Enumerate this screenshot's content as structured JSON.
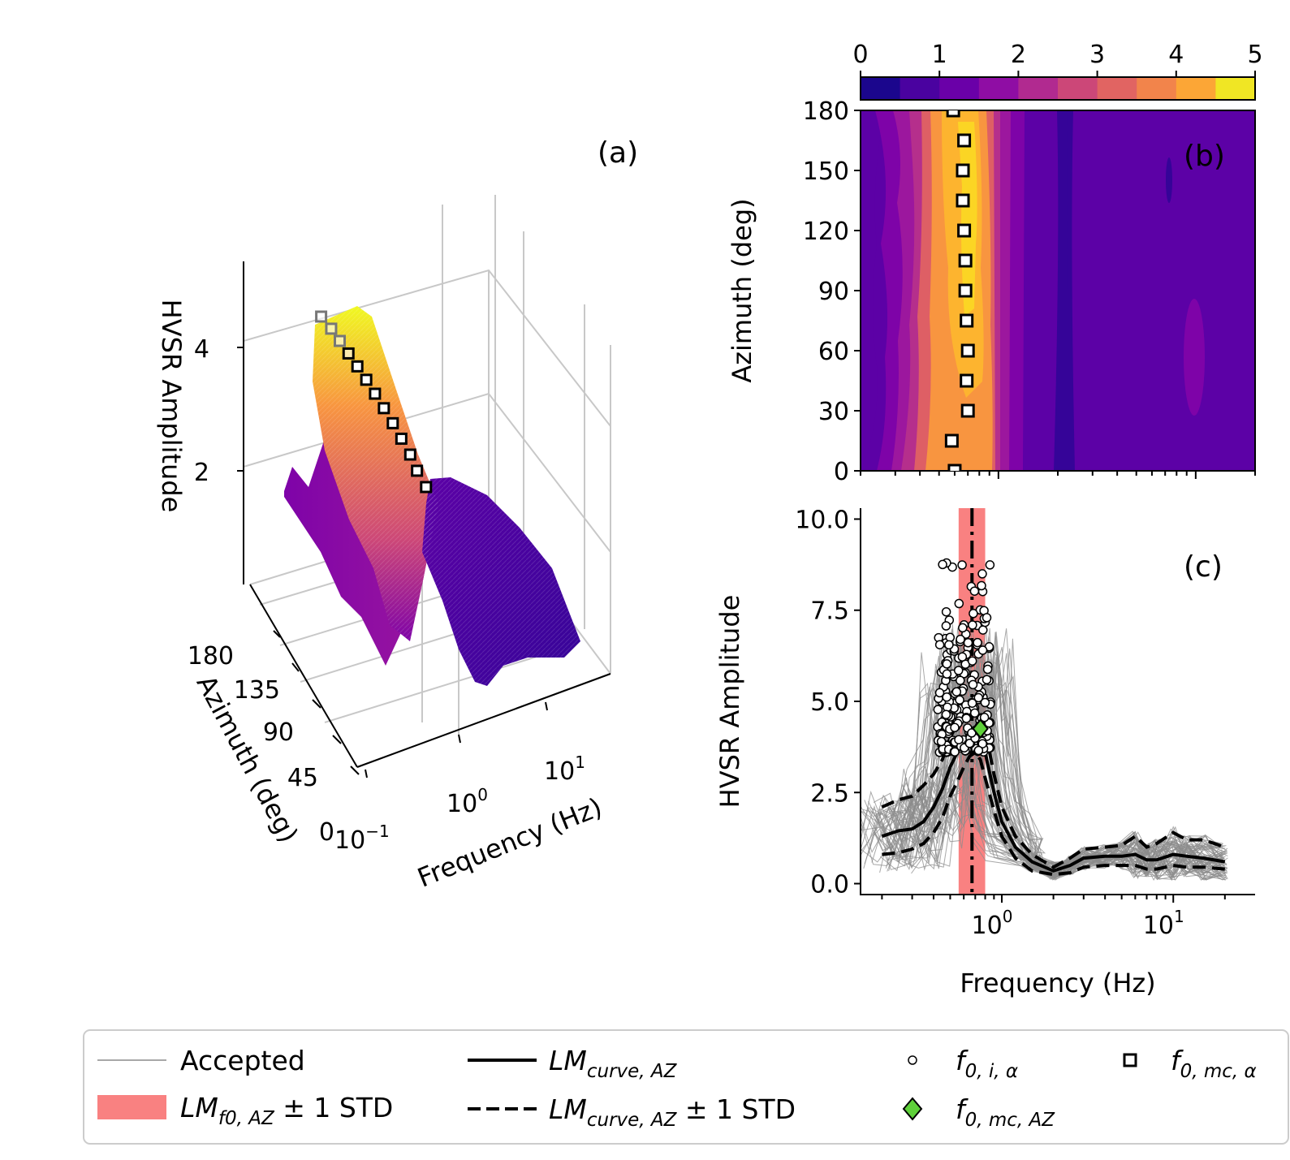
{
  "chart_data": [
    {
      "panel": "(a)",
      "type": "surface3d",
      "xlabel": "Frequency (Hz)",
      "ylabel": "Azimuth (deg)",
      "zlabel": "HVSR Amplitude",
      "x_ticks": [
        "10",
        "10",
        "10"
      ],
      "x_tick_exps": [
        "−1",
        "0",
        "1"
      ],
      "y_ticks": [
        "0",
        "45",
        "90",
        "135",
        "180"
      ],
      "z_ticks": [
        "2",
        "4"
      ],
      "colormap": "plasma",
      "peak_freq_hz": 0.65,
      "peak_amplitude": 4.6,
      "f0_markers_azimuth": [
        0,
        15,
        30,
        45,
        60,
        75,
        90,
        105,
        120,
        135,
        150,
        165,
        180
      ],
      "f0_markers_freq_hz": [
        0.6,
        0.58,
        0.7,
        0.69,
        0.7,
        0.69,
        0.68,
        0.68,
        0.67,
        0.66,
        0.66,
        0.67,
        0.59
      ]
    },
    {
      "panel": "(b)",
      "type": "heatmap",
      "xlabel": "",
      "ylabel": "Azimuth (deg)",
      "y_ticks": [
        "0",
        "30",
        "60",
        "90",
        "120",
        "150",
        "180"
      ],
      "ylim": [
        0,
        180
      ],
      "xlim_hz": [
        0.2,
        20
      ],
      "colorbar_ticks": [
        "0",
        "1",
        "2",
        "3",
        "4",
        "5"
      ],
      "colorbar_range": [
        0,
        5
      ],
      "colormap": "plasma",
      "f0_mc_alpha": [
        {
          "azimuth": 0,
          "freq_hz": 0.6
        },
        {
          "azimuth": 15,
          "freq_hz": 0.58
        },
        {
          "azimuth": 30,
          "freq_hz": 0.7
        },
        {
          "azimuth": 45,
          "freq_hz": 0.69
        },
        {
          "azimuth": 60,
          "freq_hz": 0.7
        },
        {
          "azimuth": 75,
          "freq_hz": 0.69
        },
        {
          "azimuth": 90,
          "freq_hz": 0.68
        },
        {
          "azimuth": 105,
          "freq_hz": 0.68
        },
        {
          "azimuth": 120,
          "freq_hz": 0.67
        },
        {
          "azimuth": 135,
          "freq_hz": 0.66
        },
        {
          "azimuth": 150,
          "freq_hz": 0.66
        },
        {
          "azimuth": 165,
          "freq_hz": 0.67
        },
        {
          "azimuth": 180,
          "freq_hz": 0.59
        }
      ]
    },
    {
      "panel": "(c)",
      "type": "line",
      "xlabel": "Frequency (Hz)",
      "ylabel": "HVSR Amplitude",
      "xscale": "log",
      "xlim_hz": [
        0.15,
        30
      ],
      "ylim": [
        -0.3,
        10.3
      ],
      "x_ticks": [
        "10",
        "10"
      ],
      "x_tick_exps": [
        "0",
        "1"
      ],
      "y_ticks": [
        "0.0",
        "2.5",
        "5.0",
        "7.5",
        "10.0"
      ],
      "x": [
        0.2,
        0.25,
        0.3,
        0.35,
        0.4,
        0.45,
        0.5,
        0.55,
        0.6,
        0.65,
        0.7,
        0.75,
        0.8,
        0.9,
        1.0,
        1.2,
        1.5,
        2.0,
        2.5,
        3.0,
        4.0,
        5.0,
        6.0,
        7.0,
        8.0,
        10.0,
        12.0,
        15.0,
        20.0
      ],
      "series": [
        {
          "name": "LM_curve,AZ",
          "values": [
            1.3,
            1.45,
            1.5,
            1.7,
            2.1,
            2.6,
            3.2,
            3.6,
            3.9,
            4.2,
            4.3,
            4.1,
            3.6,
            2.5,
            1.7,
            1.0,
            0.6,
            0.35,
            0.5,
            0.7,
            0.75,
            0.75,
            0.8,
            0.65,
            0.65,
            0.8,
            0.75,
            0.7,
            0.6
          ]
        },
        {
          "name": "LM_curve,AZ + 1 STD",
          "values": [
            2.1,
            2.3,
            2.4,
            2.7,
            3.0,
            3.4,
            4.0,
            4.4,
            4.6,
            4.8,
            4.9,
            4.7,
            4.2,
            3.0,
            2.1,
            1.3,
            0.8,
            0.45,
            0.7,
            0.95,
            1.0,
            1.05,
            1.3,
            1.0,
            1.1,
            1.4,
            1.2,
            1.2,
            1.0
          ]
        },
        {
          "name": "LM_curve,AZ − 1 STD",
          "values": [
            0.8,
            0.85,
            0.95,
            1.1,
            1.4,
            1.8,
            2.4,
            2.8,
            3.2,
            3.5,
            3.6,
            3.4,
            2.9,
            2.0,
            1.3,
            0.7,
            0.35,
            0.25,
            0.3,
            0.45,
            0.5,
            0.5,
            0.5,
            0.4,
            0.4,
            0.5,
            0.45,
            0.45,
            0.4
          ]
        }
      ],
      "lm_f0_az_hz": 0.67,
      "lm_f0_az_std_band_hz": [
        0.56,
        0.8
      ],
      "f0_mc_az": {
        "freq_hz": 0.75,
        "amplitude": 4.25
      }
    }
  ],
  "panel_labels": {
    "a": "(a)",
    "b": "(b)",
    "c": "(c)"
  },
  "legend": {
    "accepted": "Accepted",
    "lm_f0_base": "LM",
    "lm_f0_sub": "f0, AZ",
    "lm_f0_suffix": " ± 1 STD",
    "lm_curve_base": "LM",
    "lm_curve_sub": "curve, AZ",
    "lm_curve_std_suffix": " ± 1 STD",
    "f0_i_base": "f",
    "f0_i_sub": "0, i, α",
    "f0_mc_az_base": "f",
    "f0_mc_az_sub": "0, mc, AZ",
    "f0_mc_alpha_base": "f",
    "f0_mc_alpha_sub": "0, mc, α"
  },
  "colors": {
    "band": "#f98181",
    "accepted": "#8c8c8c",
    "diamond": "#5fd13a",
    "plasma": [
      "#0d0887",
      "#350498",
      "#5c01a6",
      "#7e03a8",
      "#9c179e",
      "#b52f8c",
      "#cc4778",
      "#de5f65",
      "#ed7953",
      "#f89540",
      "#fdb42f",
      "#fbd524",
      "#f0f921"
    ]
  }
}
